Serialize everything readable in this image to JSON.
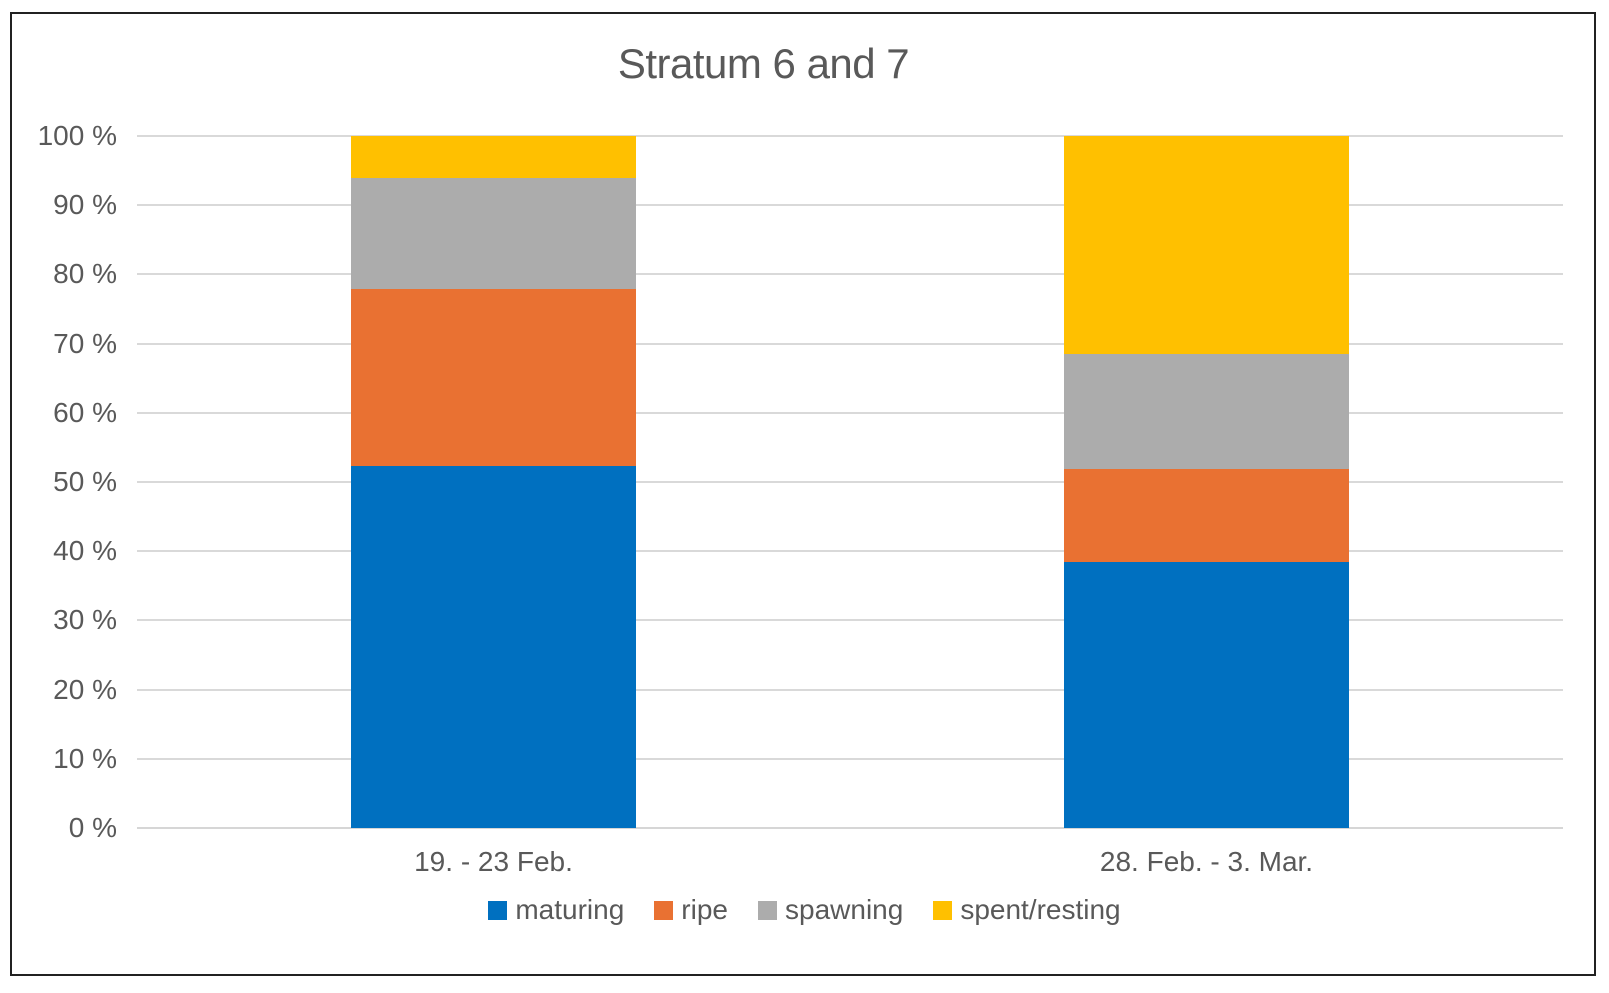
{
  "chart_data": {
    "type": "bar",
    "stacked": true,
    "units": "percent",
    "title": "Stratum 6 and 7",
    "categories": [
      "19. - 23 Feb.",
      "28. Feb. - 3. Mar."
    ],
    "series": [
      {
        "name": "maturing",
        "color": "#0070C0",
        "values": [
          52.3,
          38.4
        ]
      },
      {
        "name": "ripe",
        "color": "#E97132",
        "values": [
          25.6,
          13.5
        ]
      },
      {
        "name": "spawning",
        "color": "#ACACAC",
        "values": [
          16.1,
          16.6
        ]
      },
      {
        "name": "spent/resting",
        "color": "#FFC000",
        "values": [
          6.0,
          31.5
        ]
      }
    ],
    "xlabel": "",
    "ylabel": "",
    "ylim": [
      0,
      100
    ],
    "yticks": [
      0,
      10,
      20,
      30,
      40,
      50,
      60,
      70,
      80,
      90,
      100
    ],
    "ytick_labels": [
      "0 %",
      "10 %",
      "20 %",
      "30 %",
      "40 %",
      "50 %",
      "60 %",
      "70 %",
      "80 %",
      "90 %",
      "100 %"
    ],
    "grid": true,
    "legend_position": "bottom"
  },
  "colors": {
    "text": "#595959",
    "gridline": "#d9d9d9",
    "frame_border": "#212121",
    "background": "#ffffff"
  }
}
